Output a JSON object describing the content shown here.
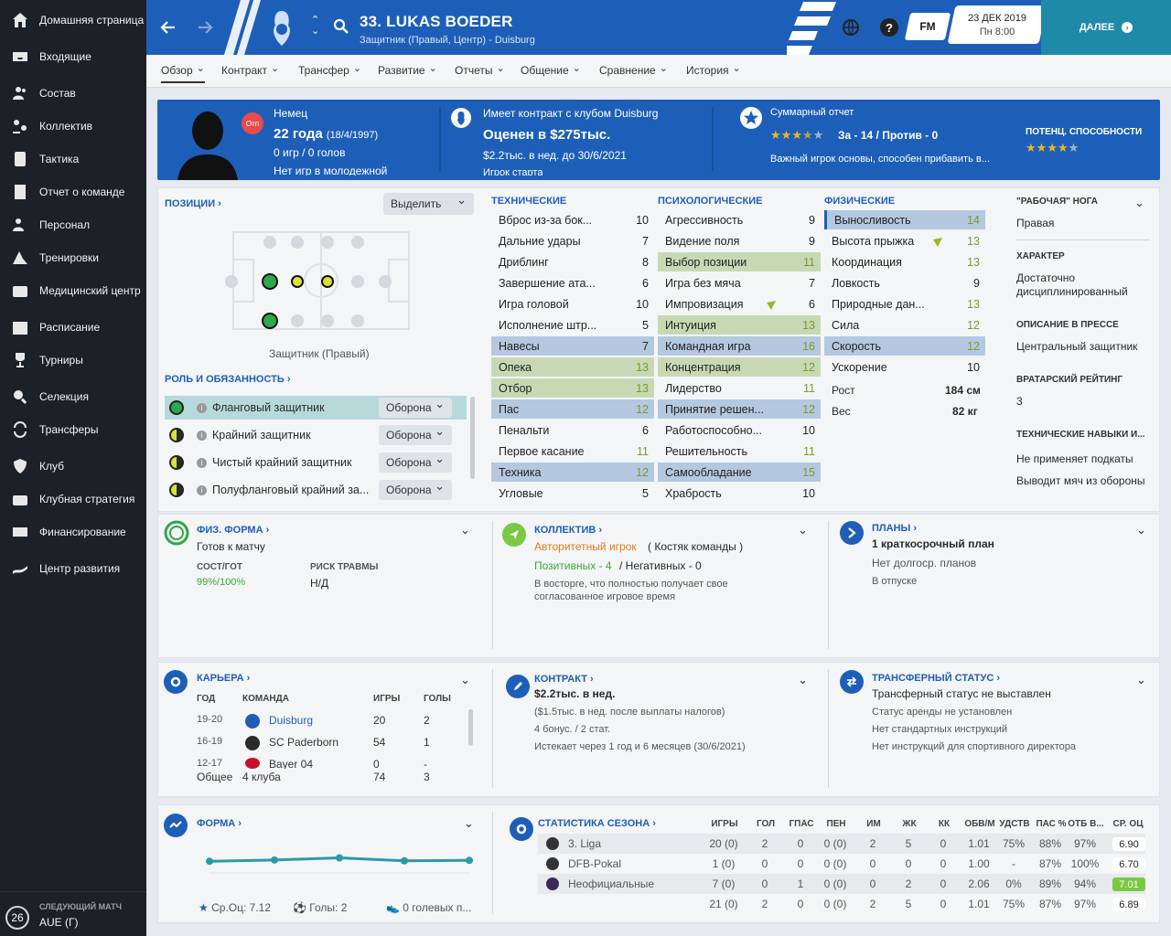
{
  "sidebar": {
    "items": [
      {
        "label": "Домашняя страница",
        "icon": "home-icon"
      },
      {
        "label": "Входящие",
        "icon": "inbox-icon"
      },
      {
        "label": "Состав",
        "icon": "squad-icon"
      },
      {
        "label": "Коллектив",
        "icon": "dynamics-icon"
      },
      {
        "label": "Тактика",
        "icon": "tactics-icon"
      },
      {
        "label": "Отчет о команде",
        "icon": "report-icon"
      },
      {
        "label": "Персонал",
        "icon": "staff-icon"
      },
      {
        "label": "Тренировки",
        "icon": "training-icon"
      },
      {
        "label": "Медицинский центр",
        "icon": "medical-icon"
      },
      {
        "label": "Расписание",
        "icon": "calendar-icon"
      },
      {
        "label": "Турниры",
        "icon": "trophy-icon"
      },
      {
        "label": "Селекция",
        "icon": "scouting-icon"
      },
      {
        "label": "Трансферы",
        "icon": "transfers-icon"
      },
      {
        "label": "Клуб",
        "icon": "club-icon"
      },
      {
        "label": "Клубная стратегия",
        "icon": "strategy-icon"
      },
      {
        "label": "Финансирование",
        "icon": "finance-icon"
      },
      {
        "label": "Центр развития",
        "icon": "development-icon"
      }
    ],
    "next_match": {
      "label": "СЛЕДУЮЩИЙ МАТЧ",
      "opponent": "AUE (Г)",
      "days": "26"
    }
  },
  "header": {
    "player_title": "33. LUKAS BOEDER",
    "player_sub": "Защитник (Правый, Центр) - Duisburg",
    "fm": "FM",
    "date": "23 ДЕК 2019",
    "time": "Пн 8:00",
    "continue": "ДАЛЕЕ"
  },
  "tabs": [
    "Обзор",
    "Контракт",
    "Трансфер",
    "Развитие",
    "Отчеты",
    "Общение",
    "Сравнение",
    "История"
  ],
  "summary": {
    "nationality": "Немец",
    "age": "22 года",
    "dob": "(18/4/1997)",
    "apps": "0 игр / 0 голов",
    "youth": "Нет игр в молодежной",
    "badge": "Отп",
    "contract_title": "Имеет контракт с клубом Duisburg",
    "value": "Оценен в $275тыс.",
    "wage": "$2.2тыс. в нед. до 30/6/2021",
    "contract_extra": "Игрок старта",
    "report_title": "Суммарный отчет",
    "report_votes": "За - 14 / Против - 0",
    "report_text": "Важный игрок основы, способен прибавить в...",
    "potential_label": "ПОТЕНЦ. СПОСОБНОСТИ",
    "ability_stars": 3.5,
    "potential_stars": 4
  },
  "positions": {
    "title": "ПОЗИЦИИ",
    "highlight_label": "Выделить",
    "position_name": "Защитник (Правый)"
  },
  "roles": {
    "title": "РОЛЬ И ОБЯЗАННОСТЬ",
    "items": [
      {
        "name": "Фланговый защитник",
        "duty": "Оборона"
      },
      {
        "name": "Крайний защитник",
        "duty": "Оборона"
      },
      {
        "name": "Чистый крайний защитник",
        "duty": "Оборона"
      },
      {
        "name": "Полуфланговый крайний за...",
        "duty": "Оборона"
      }
    ]
  },
  "attributes": {
    "technical": {
      "title": "ТЕХНИЧЕСКИЕ",
      "items": [
        {
          "name": "Вброс из-за бок...",
          "value": "10"
        },
        {
          "name": "Дальние удары",
          "value": "7"
        },
        {
          "name": "Дриблинг",
          "value": "8"
        },
        {
          "name": "Завершение ата...",
          "value": "6"
        },
        {
          "name": "Игра головой",
          "value": "10"
        },
        {
          "name": "Исполнение штр...",
          "value": "5"
        },
        {
          "name": "Навесы",
          "value": "7"
        },
        {
          "name": "Опека",
          "value": "13"
        },
        {
          "name": "Отбор",
          "value": "13"
        },
        {
          "name": "Пас",
          "value": "12"
        },
        {
          "name": "Пенальти",
          "value": "6"
        },
        {
          "name": "Первое касание",
          "value": "11"
        },
        {
          "name": "Техника",
          "value": "12"
        },
        {
          "name": "Угловые",
          "value": "5"
        }
      ]
    },
    "mental": {
      "title": "ПСИХОЛОГИЧЕСКИЕ",
      "items": [
        {
          "name": "Агрессивность",
          "value": "9"
        },
        {
          "name": "Видение поля",
          "value": "9"
        },
        {
          "name": "Выбор позиции",
          "value": "11"
        },
        {
          "name": "Игра без мяча",
          "value": "7"
        },
        {
          "name": "Импровизация",
          "value": "6"
        },
        {
          "name": "Интуиция",
          "value": "13"
        },
        {
          "name": "Командная игра",
          "value": "16"
        },
        {
          "name": "Концентрация",
          "value": "12"
        },
        {
          "name": "Лидерство",
          "value": "11"
        },
        {
          "name": "Принятие решен...",
          "value": "12"
        },
        {
          "name": "Работоспособно...",
          "value": "10"
        },
        {
          "name": "Решительность",
          "value": "11"
        },
        {
          "name": "Самообладание",
          "value": "15"
        },
        {
          "name": "Храбрость",
          "value": "10"
        }
      ]
    },
    "physical": {
      "title": "ФИЗИЧЕСКИЕ",
      "items": [
        {
          "name": "Выносливость",
          "value": "14"
        },
        {
          "name": "Высота прыжка",
          "value": "13"
        },
        {
          "name": "Координация",
          "value": "13"
        },
        {
          "name": "Ловкость",
          "value": "9"
        },
        {
          "name": "Природные дан...",
          "value": "13"
        },
        {
          "name": "Сила",
          "value": "12"
        },
        {
          "name": "Скорость",
          "value": "12"
        },
        {
          "name": "Ускорение",
          "value": "10"
        }
      ],
      "height_label": "Рост",
      "height": "184 см",
      "weight_label": "Вес",
      "weight": "82 кг"
    }
  },
  "info": {
    "foot_label": "\"РАБОЧАЯ\" НОГА",
    "foot": "Правая",
    "character_label": "ХАРАКТЕР",
    "character": "Достаточно дисциплинированный",
    "press_label": "ОПИСАНИЕ В ПРЕССЕ",
    "press": "Центральный защитник",
    "gk_label": "ВРАТАРСКИЙ РЕЙТИНГ",
    "gk": "3",
    "skills_label": "ТЕХНИЧЕСКИЕ НАВЫКИ И...",
    "skill1": "Не применяет подкаты",
    "skill2": "Выводит мяч из обороны"
  },
  "fitness": {
    "title": "ФИЗ. ФОРМА",
    "status": "Готов к матчу",
    "cond_label": "СОСТ/ГОТ",
    "cond": "99%/100%",
    "risk_label": "РИСК ТРАВМЫ",
    "risk": "Н/Д"
  },
  "dynamics": {
    "title": "КОЛЛЕКТИВ",
    "status": "Авторитетный игрок",
    "group": "( Костяк команды )",
    "pos": "Позитивных - 4",
    "neg": "/ Негативных - 0",
    "text1": "В восторге, что полностью получает свое",
    "text2": "согласованное игровое время"
  },
  "plans": {
    "title": "ПЛАНЫ",
    "short": "1 краткосрочный план",
    "long": "Нет долгоср. планов",
    "vacation": "В отпуске"
  },
  "career": {
    "title": "КАРЬЕРА",
    "headers": [
      "ГОД",
      "КОМАНДА",
      "ИГРЫ",
      "ГОЛЫ"
    ],
    "rows": [
      {
        "year": "19-20",
        "team": "Duisburg",
        "apps": "20",
        "goals": "2"
      },
      {
        "year": "16-19",
        "team": "SC Paderborn",
        "apps": "54",
        "goals": "1"
      },
      {
        "year": "12-17",
        "team": "Bayer 04",
        "apps": "0",
        "goals": "-"
      }
    ],
    "total_label": "Общее",
    "total_teams": "4 клуба",
    "total_apps": "74",
    "total_goals": "3"
  },
  "contract": {
    "title": "КОНТРАКТ",
    "wage": "$2.2тыс. в нед.",
    "after_tax": "($1.5тыс. в нед. после выплаты налогов)",
    "bonus": "4 бонус. / 2 стат.",
    "expires": "Истекает через 1 год и 6 месяцев (30/6/2021)"
  },
  "transfer": {
    "title": "ТРАНСФЕРНЫЙ СТАТУС",
    "status": "Трансферный статус не выставлен",
    "loan": "Статус аренды не установлен",
    "instr1": "Нет стандартных инструкций",
    "instr2": "Нет инструкций для спортивного директора"
  },
  "form": {
    "title": "ФОРМА",
    "avg": "Ср.Оц: 7.12",
    "goals": "Голы: 2",
    "extra": "0 голевых п...",
    "points": [
      6.9,
      7.05,
      7.3,
      6.95,
      7.0
    ]
  },
  "season": {
    "title": "СТАТИСТИКА СЕЗОНА",
    "headers": [
      "ИГРЫ",
      "ГОЛ",
      "ГПАС",
      "ПЕН",
      "ИМ",
      "ЖК",
      "КК",
      "ОБВ/М",
      "УДСТВ",
      "ПАС %",
      "ОТБ В...",
      "СР. ОЦ"
    ],
    "rows": [
      {
        "comp": "3. Liga",
        "vals": [
          "20 (0)",
          "2",
          "0",
          "0 (0)",
          "2",
          "5",
          "0",
          "1.01",
          "75%",
          "88%",
          "97%"
        ],
        "rating": "6.90"
      },
      {
        "comp": "DFB-Pokal",
        "vals": [
          "1 (0)",
          "0",
          "0",
          "0 (0)",
          "0",
          "0",
          "0",
          "1.00",
          "-",
          "87%",
          "100%"
        ],
        "rating": "6.70"
      },
      {
        "comp": "Неофициальные",
        "vals": [
          "7 (0)",
          "0",
          "1",
          "0 (0)",
          "0",
          "2",
          "0",
          "2.06",
          "0%",
          "89%",
          "94%"
        ],
        "rating": "7.01"
      },
      {
        "comp": "",
        "vals": [
          "21 (0)",
          "2",
          "0",
          "0 (0)",
          "2",
          "5",
          "0",
          "1.01",
          "75%",
          "87%",
          "97%"
        ],
        "rating": "6.89"
      }
    ]
  }
}
